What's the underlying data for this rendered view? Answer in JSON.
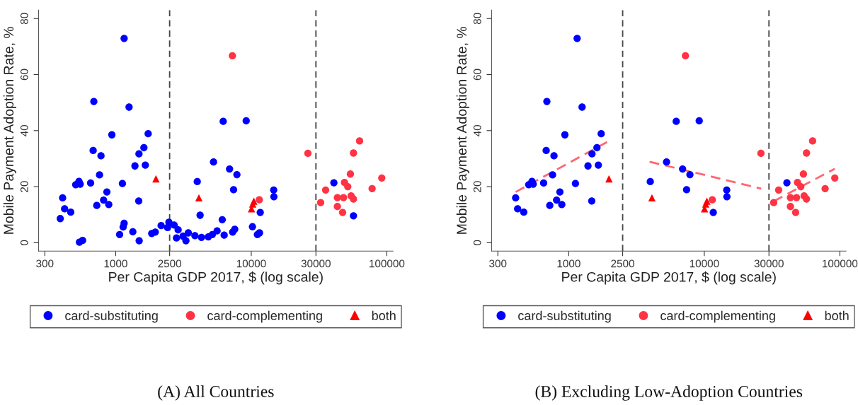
{
  "chart_data": [
    {
      "type": "scatter",
      "title": "(A) All Countries",
      "xlabel": "Per Capita GDP 2017, $ (log scale)",
      "ylabel": "Mobile Payment Adoption Rate, %",
      "log": "x",
      "xlim": [
        270,
        111000
      ],
      "xticks": [
        300,
        1000,
        2500,
        10000,
        30000,
        100000
      ],
      "ylim": [
        -3,
        83
      ],
      "yticks": [
        0,
        20,
        40,
        60,
        80
      ],
      "grid": false,
      "legend": "bottom",
      "ref_lines": [
        {
          "axis": "x",
          "value": 2500,
          "color": "#444444",
          "line_style": "dashed"
        },
        {
          "axis": "x",
          "value": 30000,
          "color": "#444444",
          "line_style": "dashed"
        }
      ],
      "series": [
        {
          "name": "card-substituting",
          "marker": "circle",
          "color": "#0000ff",
          "x": [
            390,
            406,
            420,
            466,
            507,
            536,
            547,
            540,
            570,
            653,
            682,
            690,
            725,
            760,
            779,
            814,
            861,
            889,
            937,
            1069,
            1121,
            1135,
            1154,
            1154,
            1255,
            1338,
            1387,
            1479,
            1485,
            1490,
            1615,
            1654,
            1736,
            1844,
            1958,
            2164,
            2412,
            2470,
            2698,
            2808,
            2888,
            3141,
            3297,
            3433,
            3840,
            3996,
            4194,
            4293,
            4822,
            5164,
            5268,
            5596,
            6111,
            6210,
            6312,
            6918,
            7290,
            7407,
            7557,
            7837,
            9177,
            10206,
            11100,
            11505,
            11650,
            14640,
            14690,
            40690,
            56750
          ],
          "values": [
            8.6,
            16,
            12.1,
            10.9,
            20.7,
            21.9,
            20.9,
            0.2,
            0.8,
            21.3,
            32.9,
            50.4,
            13.3,
            24.2,
            31,
            15.2,
            18.1,
            13.6,
            38.5,
            2.9,
            21.1,
            5.6,
            6.9,
            72.9,
            48.4,
            3.9,
            27.4,
            14.9,
            31.7,
            0.7,
            33.9,
            27.7,
            38.9,
            3.3,
            3.8,
            6.1,
            5.4,
            7.3,
            6.3,
            1.7,
            4.6,
            2.3,
            0.7,
            3.5,
            2.5,
            21.8,
            9.8,
            1.9,
            2.1,
            2.9,
            28.8,
            4.2,
            8.2,
            43.3,
            2.7,
            26.3,
            3.8,
            18.9,
            4.8,
            24.3,
            43.5,
            5.7,
            2.9,
            3.5,
            10.8,
            18.8,
            16.4,
            21.4,
            9.6
          ]
        },
        {
          "name": "card-complementing",
          "type": "scatter",
          "marker": "circle",
          "color": "#ff3344",
          "x": [
            7261,
            11463,
            26180,
            32500,
            35370,
            43200,
            43200,
            47200,
            47950,
            48730,
            51530,
            53870,
            54520,
            56750,
            56750,
            62960,
            77900,
            91800
          ],
          "values": [
            66.7,
            15.3,
            31.9,
            14.3,
            18.8,
            16.1,
            12.9,
            10.8,
            16.1,
            21.5,
            20,
            24.5,
            16.7,
            15.6,
            32,
            36.3,
            19.3,
            23.1
          ]
        },
        {
          "name": "both",
          "type": "scatter",
          "marker": "triangle",
          "color": "#ff0000",
          "x": [
            1981,
            4110,
            10044,
            10250,
            10450
          ],
          "values": [
            22.8,
            16,
            12.1,
            13.8,
            14.8
          ]
        }
      ]
    },
    {
      "type": "scatter",
      "title": "(B) Excluding Low-Adoption Countries",
      "xlabel": "Per Capita GDP 2017, $ (log scale)",
      "ylabel": "Mobile Payment Adoption Rate, %",
      "log": "x",
      "xlim": [
        270,
        111000
      ],
      "xticks": [
        300,
        1000,
        2500,
        10000,
        30000,
        100000
      ],
      "ylim": [
        -3,
        83
      ],
      "yticks": [
        0,
        20,
        40,
        60,
        80
      ],
      "grid": false,
      "legend": "bottom",
      "ref_lines": [
        {
          "axis": "x",
          "value": 2500,
          "color": "#444444",
          "line_style": "dashed"
        },
        {
          "axis": "x",
          "value": 30000,
          "color": "#444444",
          "line_style": "dashed"
        }
      ],
      "series": [
        {
          "name": "card-substituting",
          "marker": "circle",
          "color": "#0000ff",
          "x": [
            406,
            420,
            466,
            507,
            536,
            547,
            653,
            682,
            690,
            725,
            760,
            779,
            814,
            861,
            889,
            937,
            1121,
            1154,
            1255,
            1387,
            1479,
            1485,
            1615,
            1654,
            1736,
            3996,
            5268,
            6210,
            6918,
            7407,
            7837,
            9177,
            11650,
            14640,
            14690,
            40690
          ],
          "values": [
            16,
            12.1,
            10.9,
            20.7,
            21.9,
            20.9,
            21.3,
            32.9,
            50.4,
            13.3,
            24.2,
            31,
            15.2,
            18.1,
            13.6,
            38.5,
            21.1,
            72.9,
            48.4,
            27.4,
            14.9,
            31.7,
            33.9,
            27.7,
            38.9,
            21.8,
            28.8,
            43.3,
            26.3,
            18.9,
            24.3,
            43.5,
            10.8,
            18.8,
            16.4,
            21.4
          ]
        },
        {
          "name": "card-complementing",
          "type": "scatter",
          "marker": "circle",
          "color": "#ff3344",
          "x": [
            7261,
            11463,
            26180,
            32500,
            35370,
            43200,
            43200,
            47200,
            47950,
            48730,
            51530,
            53870,
            54520,
            56750,
            56750,
            62960,
            77900,
            91800
          ],
          "values": [
            66.7,
            15.3,
            31.9,
            14.3,
            18.8,
            16.1,
            12.9,
            10.8,
            16.1,
            21.5,
            20,
            24.5,
            16.7,
            15.6,
            32,
            36.3,
            19.3,
            23.1
          ]
        },
        {
          "name": "both",
          "type": "scatter",
          "marker": "triangle",
          "color": "#ff0000",
          "x": [
            1981,
            4110,
            10044,
            10250,
            10450
          ],
          "values": [
            22.8,
            16,
            12.1,
            13.8,
            14.8
          ]
        },
        {
          "type": "line",
          "line_style": "dashed",
          "marker": "none",
          "color": "#ff6670",
          "x": [
            406,
            1981
          ],
          "values": [
            18.1,
            36.3
          ]
        },
        {
          "type": "line",
          "line_style": "dashed",
          "marker": "none",
          "color": "#ff6670",
          "x": [
            3950,
            26280
          ],
          "values": [
            28.9,
            19.3
          ]
        },
        {
          "type": "line",
          "line_style": "dashed",
          "marker": "none",
          "color": "#ff6670",
          "x": [
            32500,
            91800
          ],
          "values": [
            14.8,
            26.4
          ]
        }
      ]
    }
  ]
}
